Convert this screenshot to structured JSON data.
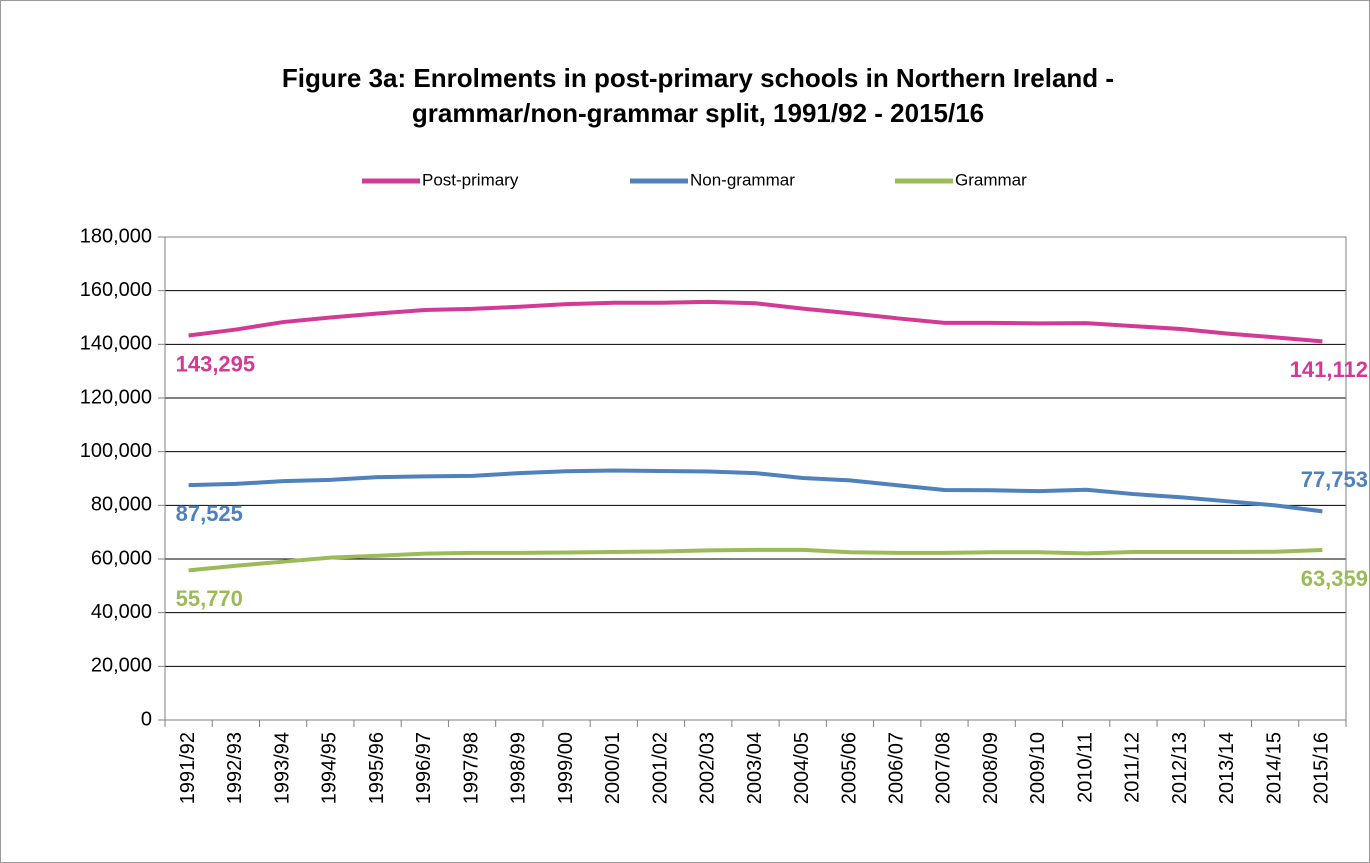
{
  "chart_data": {
    "type": "line",
    "title": [
      "Figure 3a: Enrolments in post-primary schools in Northern Ireland -",
      "grammar/non-grammar split, 1991/92 - 2015/16"
    ],
    "categories": [
      "1991/92",
      "1992/93",
      "1993/94",
      "1994/95",
      "1995/96",
      "1996/97",
      "1997/98",
      "1998/99",
      "1999/00",
      "2000/01",
      "2001/02",
      "2002/03",
      "2003/04",
      "2004/05",
      "2005/06",
      "2006/07",
      "2007/08",
      "2008/09",
      "2009/10",
      "2010/11",
      "2011/12",
      "2012/13",
      "2013/14",
      "2014/15",
      "2015/16"
    ],
    "series": [
      {
        "name": "Post-primary",
        "color": "#d33a96",
        "values": [
          143295,
          145500,
          148300,
          150000,
          151500,
          152800,
          153200,
          154000,
          155000,
          155500,
          155500,
          155800,
          155300,
          153300,
          151600,
          149700,
          148000,
          148000,
          147800,
          147900,
          146800,
          145700,
          144000,
          142600,
          141112
        ],
        "value_labels": [
          "143,295",
          null,
          null,
          null,
          null,
          null,
          null,
          null,
          null,
          null,
          null,
          null,
          null,
          null,
          null,
          null,
          null,
          null,
          null,
          null,
          null,
          null,
          null,
          null,
          "141,112"
        ]
      },
      {
        "name": "Non-grammar",
        "color": "#4f81bd",
        "values": [
          87525,
          88000,
          89000,
          89500,
          90500,
          90800,
          91000,
          92000,
          92700,
          93000,
          92800,
          92600,
          92000,
          90200,
          89300,
          87500,
          85700,
          85600,
          85300,
          85800,
          84200,
          83000,
          81500,
          80000,
          77753
        ],
        "value_labels": [
          "87,525",
          null,
          null,
          null,
          null,
          null,
          null,
          null,
          null,
          null,
          null,
          null,
          null,
          null,
          null,
          null,
          null,
          null,
          null,
          null,
          null,
          null,
          null,
          null,
          "77,753"
        ]
      },
      {
        "name": "Grammar",
        "color": "#9bbb59",
        "values": [
          55770,
          57500,
          59000,
          60500,
          61200,
          62000,
          62300,
          62300,
          62400,
          62600,
          62800,
          63200,
          63400,
          63400,
          62500,
          62300,
          62300,
          62500,
          62500,
          62100,
          62600,
          62600,
          62600,
          62700,
          63359
        ],
        "value_labels": [
          "55,770",
          null,
          null,
          null,
          null,
          null,
          null,
          null,
          null,
          null,
          null,
          null,
          null,
          null,
          null,
          null,
          null,
          null,
          null,
          null,
          null,
          null,
          null,
          null,
          "63,359"
        ]
      }
    ],
    "ylim": [
      0,
      180000
    ],
    "yticks": [
      0,
      {
        "value": 20000,
        "label": "20,000"
      },
      {
        "value": 40000,
        "label": "40,000"
      },
      {
        "value": 60000,
        "label": "60,000"
      },
      {
        "value": 80000,
        "label": "80,000"
      },
      {
        "value": 100000,
        "label": "100,000"
      },
      {
        "value": 120000,
        "label": "120,000"
      },
      {
        "value": 140000,
        "label": "140,000"
      },
      {
        "value": 160000,
        "label": "160,000"
      },
      {
        "value": 180000,
        "label": "180,000"
      }
    ],
    "grid": true,
    "legend": "top"
  }
}
